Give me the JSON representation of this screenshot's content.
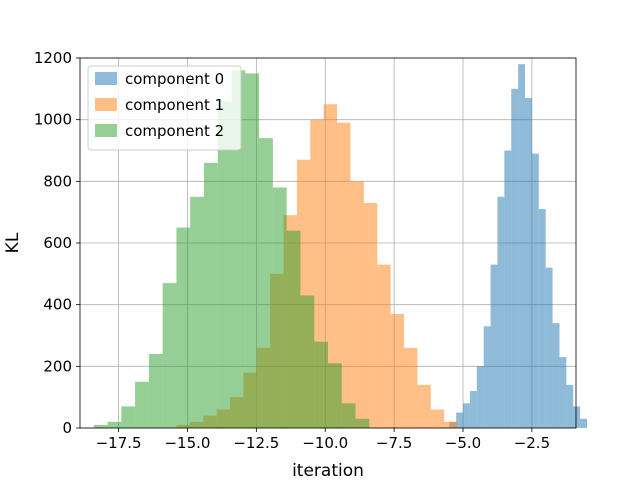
{
  "chart_data": {
    "type": "bar",
    "xlabel": "iteration",
    "ylabel": "KL",
    "xlim": [
      -18.9,
      -0.9
    ],
    "ylim": [
      0,
      1200
    ],
    "grid": true,
    "legend_position": "top-left",
    "x_ticks": [
      -17.5,
      -15.0,
      -12.5,
      -10.0,
      -7.5,
      -5.0,
      -2.5
    ],
    "x_tick_labels": [
      "−17.5",
      "−15.0",
      "−12.5",
      "−10.0",
      "−7.5",
      "−5.0",
      "−2.5"
    ],
    "y_ticks": [
      0,
      200,
      400,
      600,
      800,
      1000,
      1200
    ],
    "y_tick_labels": [
      "0",
      "200",
      "400",
      "600",
      "800",
      "1000",
      "1200"
    ],
    "series": [
      {
        "name": "component 0",
        "color": "#1f77b4",
        "bin_start": -5.5,
        "bin_width": 0.25,
        "counts": [
          20,
          50,
          80,
          120,
          200,
          330,
          530,
          750,
          900,
          1100,
          1180,
          1070,
          890,
          710,
          520,
          340,
          230,
          140,
          70,
          30
        ]
      },
      {
        "name": "component 1",
        "color": "#ff7f0e",
        "bin_start": -15.4,
        "bin_width": 0.4858,
        "counts": [
          10,
          20,
          40,
          60,
          100,
          180,
          260,
          500,
          690,
          870,
          1000,
          1050,
          990,
          800,
          730,
          530,
          370,
          260,
          140,
          60,
          20
        ]
      },
      {
        "name": "component 2",
        "color": "#2ca02c",
        "bin_start": -18.4,
        "bin_width": 0.5,
        "counts": [
          10,
          20,
          70,
          150,
          240,
          470,
          650,
          750,
          860,
          1060,
          1160,
          1150,
          940,
          780,
          640,
          430,
          280,
          210,
          80,
          30
        ]
      }
    ]
  }
}
